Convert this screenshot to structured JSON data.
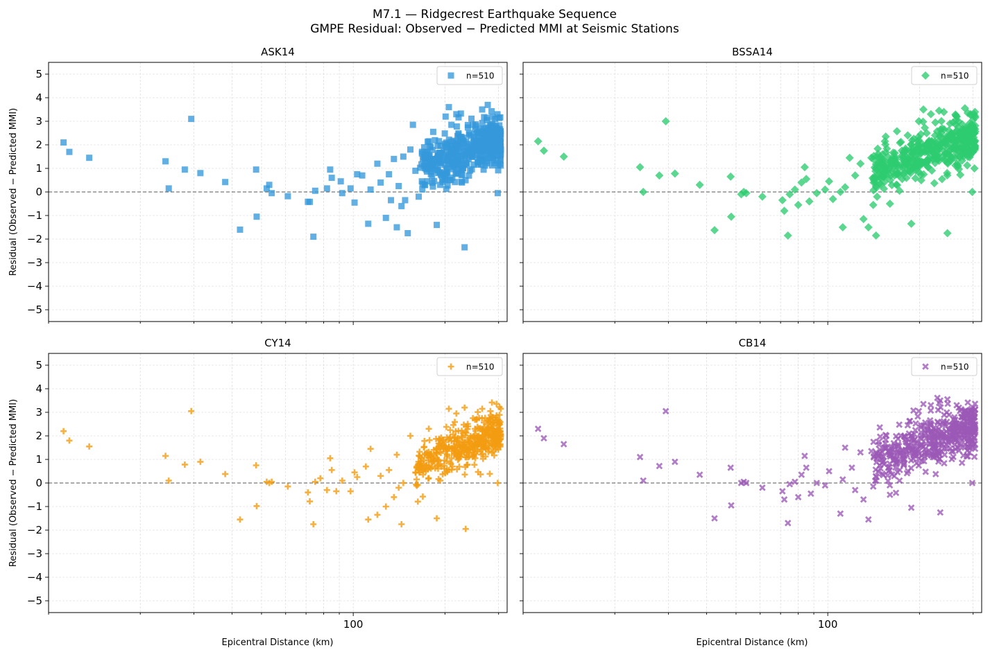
{
  "suptitle": {
    "line1": "M7.1 — Ridgecrest Earthquake Sequence",
    "line2": "GMPE Residual: Observed − Predicted MMI at Seismic Stations"
  },
  "shared_axes": {
    "xlabel": "Epicentral Distance (km)",
    "ylabel": "Residual (Observed − Predicted MMI)",
    "xscale": "log",
    "xlim": [
      10,
      320
    ],
    "ylim": [
      -5.5,
      5.5
    ],
    "yticks": [
      -5,
      -4,
      -3,
      -2,
      -1,
      0,
      1,
      2,
      3,
      4,
      5
    ],
    "xticks_major": [
      100
    ],
    "grid": true,
    "zero_line": 0
  },
  "chart_data": [
    {
      "type": "scatter",
      "title": "ASK14",
      "marker": "square",
      "color": "#3498db",
      "legend": {
        "label": "n=510",
        "position": "upper right"
      },
      "n": 510,
      "points_listed": [
        [
          11.2,
          2.1
        ],
        [
          11.7,
          1.7
        ],
        [
          13.6,
          1.45
        ],
        [
          24.2,
          1.3
        ],
        [
          24.8,
          0.15
        ],
        [
          28.0,
          0.95
        ],
        [
          29.4,
          3.1
        ],
        [
          31.5,
          0.8
        ],
        [
          38.0,
          0.42
        ],
        [
          42.5,
          -1.6
        ],
        [
          48.2,
          -1.05
        ],
        [
          48.0,
          0.95
        ],
        [
          52.0,
          0.15
        ],
        [
          53.0,
          0.3
        ],
        [
          54.0,
          -0.05
        ],
        [
          61.0,
          -0.18
        ],
        [
          71.0,
          -0.42
        ],
        [
          72.0,
          -0.42
        ],
        [
          75.0,
          0.05
        ],
        [
          74.0,
          -1.9
        ],
        [
          82.0,
          0.15
        ],
        [
          84.0,
          0.95
        ],
        [
          85.0,
          0.6
        ],
        [
          91.0,
          0.45
        ],
        [
          92.0,
          -0.05
        ],
        [
          98.0,
          0.15
        ],
        [
          101.0,
          -0.45
        ],
        [
          103.0,
          0.75
        ],
        [
          107.0,
          0.7
        ],
        [
          112.0,
          -1.35
        ],
        [
          114.0,
          0.1
        ],
        [
          120.0,
          1.2
        ],
        [
          123.0,
          0.4
        ],
        [
          128.0,
          -1.1
        ],
        [
          131.0,
          0.75
        ],
        [
          133.0,
          -0.35
        ],
        [
          136.0,
          1.4
        ],
        [
          139.0,
          -1.5
        ],
        [
          141.0,
          0.25
        ],
        [
          144.0,
          -0.6
        ],
        [
          146.0,
          1.5
        ],
        [
          148.0,
          -0.35
        ],
        [
          151.0,
          -1.75
        ],
        [
          154.0,
          1.8
        ],
        [
          157.0,
          2.85
        ],
        [
          160.0,
          0.9
        ],
        [
          164.0,
          -0.2
        ],
        [
          168.0,
          0.45
        ],
        [
          172.0,
          1.6
        ],
        [
          177.0,
          2.15
        ],
        [
          183.0,
          2.55
        ],
        [
          188.0,
          -1.4
        ],
        [
          193.0,
          0.3
        ],
        [
          201.0,
          3.2
        ],
        [
          206.0,
          3.6
        ],
        [
          210.0,
          2.85
        ],
        [
          218.0,
          3.3
        ],
        [
          232.0,
          -2.35
        ],
        [
          247.0,
          2.85
        ],
        [
          265.0,
          3.5
        ],
        [
          282.0,
          2.85
        ],
        [
          295.0,
          2.5
        ],
        [
          298.0,
          -0.05
        ],
        [
          300.0,
          1.75
        ],
        [
          303.0,
          2.0
        ]
      ],
      "dense_cluster": {
        "x_range": [
          165,
          305
        ],
        "y_center_at_x_start": 1.0,
        "y_center_at_x_end": 2.3,
        "y_spread": 0.55,
        "count": 445
      }
    },
    {
      "type": "scatter",
      "title": "BSSA14",
      "marker": "diamond",
      "color": "#2ecc71",
      "legend": {
        "label": "n=510",
        "position": "upper right"
      },
      "n": 510,
      "points_listed": [
        [
          11.2,
          2.15
        ],
        [
          11.7,
          1.75
        ],
        [
          13.6,
          1.5
        ],
        [
          24.2,
          1.05
        ],
        [
          24.8,
          0.0
        ],
        [
          28.0,
          0.7
        ],
        [
          29.4,
          3.0
        ],
        [
          31.5,
          0.78
        ],
        [
          38.0,
          0.3
        ],
        [
          42.5,
          -1.62
        ],
        [
          48.2,
          -1.05
        ],
        [
          48.0,
          0.65
        ],
        [
          52.0,
          -0.1
        ],
        [
          53.0,
          0.0
        ],
        [
          54.0,
          -0.05
        ],
        [
          61.0,
          -0.2
        ],
        [
          71.0,
          -0.35
        ],
        [
          72.0,
          -0.8
        ],
        [
          75.0,
          -0.1
        ],
        [
          74.0,
          -1.85
        ],
        [
          78.0,
          0.1
        ],
        [
          80.0,
          -0.55
        ],
        [
          82.0,
          0.4
        ],
        [
          84.0,
          1.05
        ],
        [
          85.0,
          0.55
        ],
        [
          87.0,
          -0.4
        ],
        [
          92.0,
          -0.05
        ],
        [
          98.0,
          0.1
        ],
        [
          101.0,
          0.45
        ],
        [
          104.0,
          -0.3
        ],
        [
          110.0,
          0.0
        ],
        [
          112.0,
          -1.5
        ],
        [
          114.0,
          0.2
        ],
        [
          118.0,
          1.45
        ],
        [
          123.0,
          0.7
        ],
        [
          128.0,
          1.2
        ],
        [
          131.0,
          -1.15
        ],
        [
          136.0,
          -1.5
        ],
        [
          139.0,
          1.45
        ],
        [
          141.0,
          -0.55
        ],
        [
          144.0,
          -1.85
        ],
        [
          148.0,
          0.35
        ],
        [
          154.0,
          2.15
        ],
        [
          160.0,
          -0.5
        ],
        [
          166.0,
          1.65
        ],
        [
          172.0,
          0.05
        ],
        [
          183.0,
          2.4
        ],
        [
          188.0,
          -1.35
        ],
        [
          199.0,
          3.0
        ],
        [
          206.0,
          3.5
        ],
        [
          218.0,
          3.3
        ],
        [
          232.0,
          3.45
        ],
        [
          247.0,
          -1.75
        ],
        [
          252.0,
          2.9
        ],
        [
          265.0,
          3.2
        ],
        [
          282.0,
          3.55
        ],
        [
          295.0,
          2.65
        ],
        [
          298.0,
          0.0
        ],
        [
          300.0,
          1.7
        ],
        [
          303.0,
          1.0
        ]
      ],
      "dense_cluster": {
        "x_range": [
          140,
          305
        ],
        "y_center_at_x_start": 0.8,
        "y_center_at_x_end": 2.4,
        "y_spread": 0.5,
        "count": 450
      }
    },
    {
      "type": "scatter",
      "title": "CY14",
      "marker": "plus",
      "color": "#f39c12",
      "legend": {
        "label": "n=510",
        "position": "upper right"
      },
      "n": 510,
      "points_listed": [
        [
          11.2,
          2.2
        ],
        [
          11.7,
          1.8
        ],
        [
          13.6,
          1.55
        ],
        [
          24.2,
          1.15
        ],
        [
          24.8,
          0.1
        ],
        [
          28.0,
          0.78
        ],
        [
          29.4,
          3.05
        ],
        [
          31.5,
          0.9
        ],
        [
          38.0,
          0.38
        ],
        [
          42.5,
          -1.55
        ],
        [
          48.2,
          -0.98
        ],
        [
          48.0,
          0.75
        ],
        [
          52.0,
          0.05
        ],
        [
          53.0,
          0.0
        ],
        [
          54.0,
          0.05
        ],
        [
          61.0,
          -0.15
        ],
        [
          71.0,
          -0.4
        ],
        [
          72.0,
          -0.78
        ],
        [
          75.0,
          0.05
        ],
        [
          74.0,
          -1.75
        ],
        [
          78.0,
          0.2
        ],
        [
          82.0,
          -0.3
        ],
        [
          84.0,
          1.05
        ],
        [
          85.0,
          0.55
        ],
        [
          88.0,
          -0.35
        ],
        [
          92.0,
          0.1
        ],
        [
          98.0,
          -0.35
        ],
        [
          101.0,
          0.45
        ],
        [
          103.0,
          0.25
        ],
        [
          110.0,
          0.7
        ],
        [
          112.0,
          -1.55
        ],
        [
          114.0,
          1.45
        ],
        [
          120.0,
          -1.35
        ],
        [
          123.0,
          0.3
        ],
        [
          128.0,
          -1.0
        ],
        [
          131.0,
          0.55
        ],
        [
          136.0,
          -0.6
        ],
        [
          139.0,
          1.2
        ],
        [
          141.0,
          -0.2
        ],
        [
          144.0,
          -1.75
        ],
        [
          146.0,
          0.0
        ],
        [
          154.0,
          2.0
        ],
        [
          160.0,
          0.45
        ],
        [
          172.0,
          1.25
        ],
        [
          177.0,
          2.3
        ],
        [
          188.0,
          -1.5
        ],
        [
          193.0,
          0.1
        ],
        [
          206.0,
          3.15
        ],
        [
          218.0,
          2.95
        ],
        [
          232.0,
          3.2
        ],
        [
          234.0,
          -1.95
        ],
        [
          247.0,
          2.75
        ],
        [
          265.0,
          3.15
        ],
        [
          282.0,
          3.05
        ],
        [
          295.0,
          2.55
        ],
        [
          298.0,
          0.0
        ],
        [
          300.0,
          1.65
        ]
      ],
      "dense_cluster": {
        "x_range": [
          160,
          305
        ],
        "y_center_at_x_start": 0.75,
        "y_center_at_x_end": 2.2,
        "y_spread": 0.45,
        "count": 453
      }
    },
    {
      "type": "scatter",
      "title": "CB14",
      "marker": "x",
      "color": "#9b59b6",
      "legend": {
        "label": "n=510",
        "position": "upper right"
      },
      "n": 510,
      "points_listed": [
        [
          11.2,
          2.3
        ],
        [
          11.7,
          1.9
        ],
        [
          13.6,
          1.65
        ],
        [
          24.2,
          1.1
        ],
        [
          24.8,
          0.1
        ],
        [
          28.0,
          0.72
        ],
        [
          29.4,
          3.05
        ],
        [
          31.5,
          0.9
        ],
        [
          38.0,
          0.35
        ],
        [
          42.5,
          -1.5
        ],
        [
          48.2,
          -0.95
        ],
        [
          48.0,
          0.65
        ],
        [
          52.0,
          0.0
        ],
        [
          53.0,
          0.05
        ],
        [
          54.0,
          0.0
        ],
        [
          61.0,
          -0.2
        ],
        [
          71.0,
          -0.35
        ],
        [
          72.0,
          -0.7
        ],
        [
          75.0,
          -0.05
        ],
        [
          74.0,
          -1.7
        ],
        [
          78.0,
          0.05
        ],
        [
          80.0,
          -0.6
        ],
        [
          82.0,
          0.35
        ],
        [
          84.0,
          1.15
        ],
        [
          85.0,
          0.65
        ],
        [
          88.0,
          -0.45
        ],
        [
          92.0,
          0.0
        ],
        [
          98.0,
          -0.1
        ],
        [
          101.0,
          0.5
        ],
        [
          110.0,
          -1.3
        ],
        [
          112.0,
          0.15
        ],
        [
          114.0,
          1.5
        ],
        [
          120.0,
          0.65
        ],
        [
          123.0,
          -0.3
        ],
        [
          128.0,
          1.3
        ],
        [
          131.0,
          -0.7
        ],
        [
          136.0,
          -1.55
        ],
        [
          139.0,
          1.35
        ],
        [
          141.0,
          -0.15
        ],
        [
          144.0,
          0.1
        ],
        [
          154.0,
          1.5
        ],
        [
          160.0,
          -0.5
        ],
        [
          172.0,
          0.1
        ],
        [
          183.0,
          2.45
        ],
        [
          188.0,
          -1.05
        ],
        [
          199.0,
          3.05
        ],
        [
          206.0,
          3.35
        ],
        [
          218.0,
          3.3
        ],
        [
          232.0,
          3.4
        ],
        [
          234.0,
          -1.25
        ],
        [
          247.0,
          3.55
        ],
        [
          265.0,
          3.3
        ],
        [
          282.0,
          3.05
        ],
        [
          295.0,
          2.5
        ],
        [
          298.0,
          0.0
        ],
        [
          300.0,
          1.75
        ]
      ],
      "dense_cluster": {
        "x_range": [
          140,
          305
        ],
        "y_center_at_x_start": 0.9,
        "y_center_at_x_end": 2.4,
        "y_spread": 0.55,
        "count": 454
      }
    }
  ]
}
